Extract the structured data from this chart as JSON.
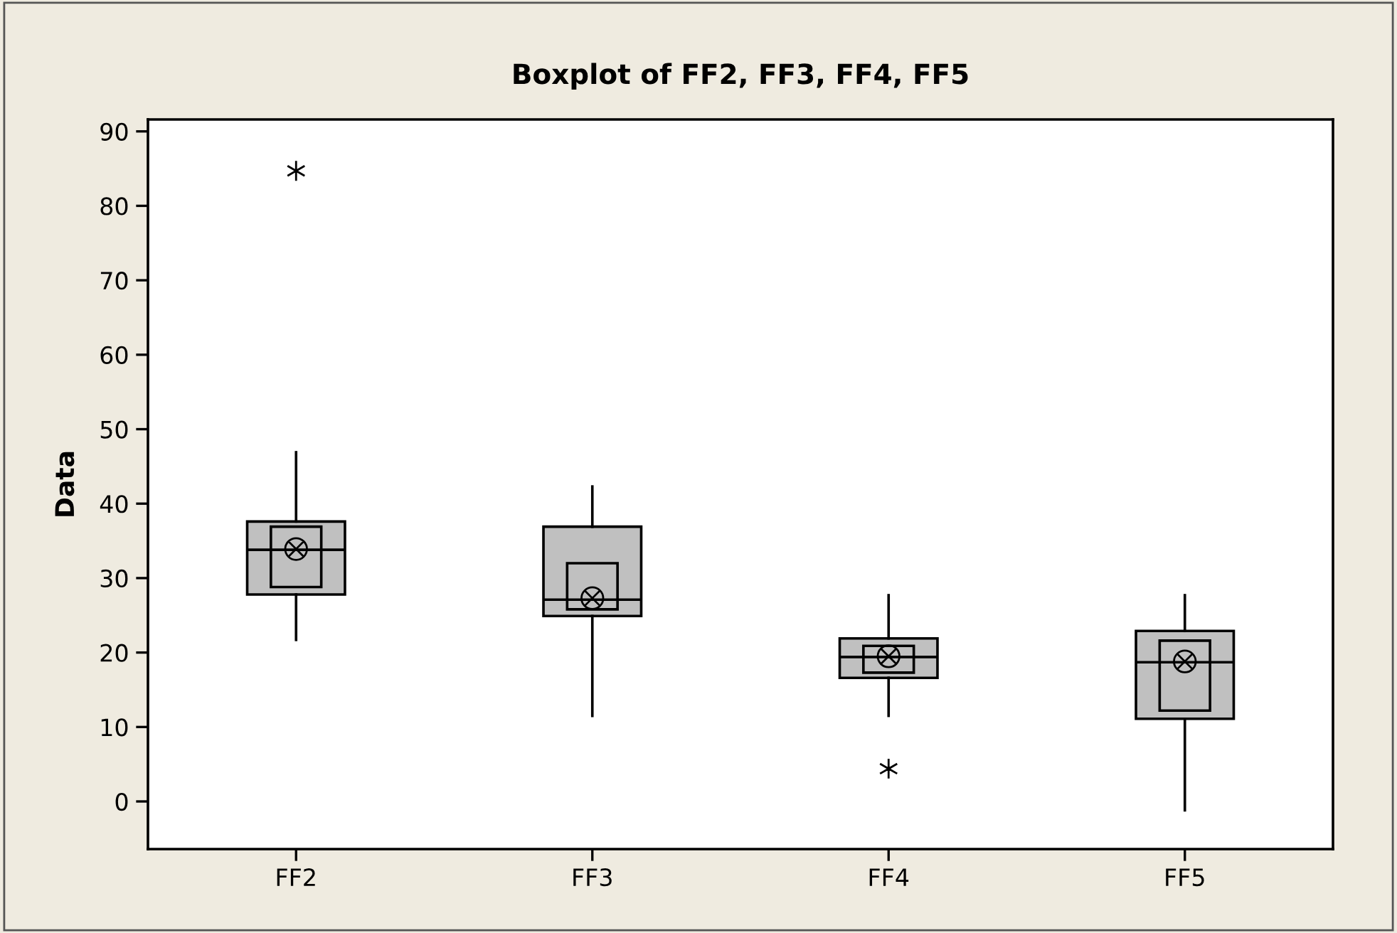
{
  "chart_data": {
    "type": "box",
    "title": "Boxplot of FF2, FF3, FF4, FF5",
    "ylabel": "Data",
    "categories": [
      "FF2",
      "FF3",
      "FF4",
      "FF5"
    ],
    "ylim": [
      -6.4,
      91.6
    ],
    "yticks": [
      0,
      10,
      20,
      30,
      40,
      50,
      60,
      70,
      80,
      90
    ],
    "grid": false,
    "series": [
      {
        "color": "#c0c0c0",
        "boxes": [
          {
            "low": 21.7,
            "q1": 27.8,
            "median": 33.8,
            "q3": 37.6,
            "high": 46.9,
            "mean": 33.9,
            "outliers": [
              84.7
            ]
          },
          {
            "low": 11.5,
            "q1": 24.9,
            "median": 27.1,
            "q3": 36.9,
            "high": 42.3,
            "mean": 27.3
          },
          {
            "low": 11.5,
            "q1": 16.6,
            "median": 19.4,
            "q3": 21.9,
            "high": 27.7,
            "mean": 19.5,
            "outliers": [
              4.4
            ]
          },
          {
            "low": -1.2,
            "q1": 11.1,
            "median": 18.7,
            "q3": 22.9,
            "high": 27.7,
            "mean": 18.8
          }
        ]
      },
      {
        "type": "bar",
        "color": "#c0c0c0",
        "base": [
          28.8,
          25.8,
          17.3,
          12.2
        ],
        "values": [
          8.1,
          6.2,
          3.6,
          9.4
        ]
      }
    ]
  }
}
